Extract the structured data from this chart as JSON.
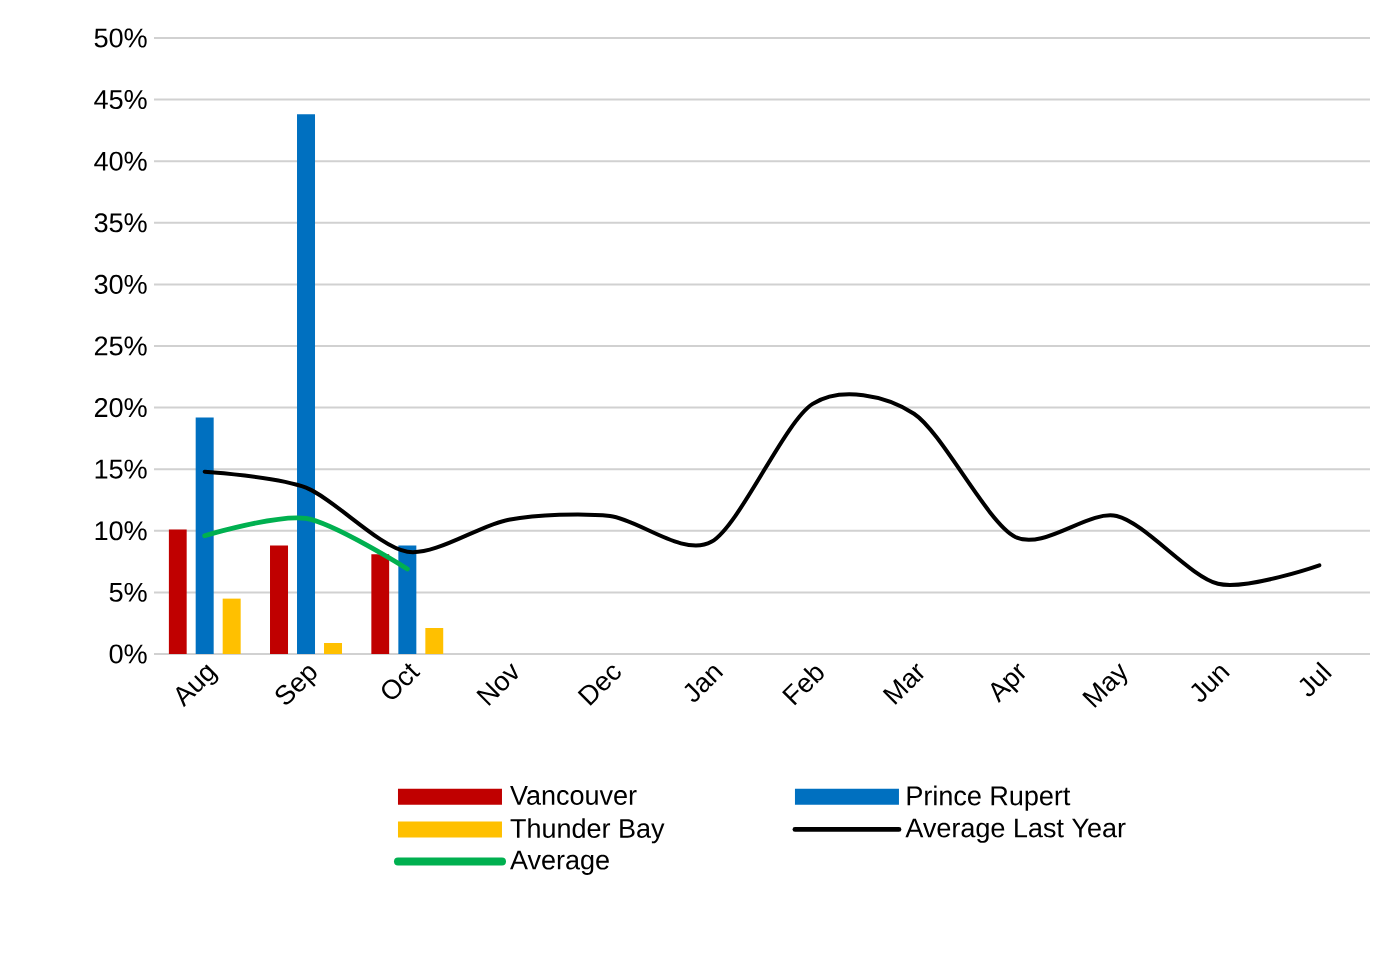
{
  "chart_data": {
    "type": "bar",
    "categories": [
      "Aug",
      "Sep",
      "Oct",
      "Nov",
      "Dec",
      "Jan",
      "Feb",
      "Mar",
      "Apr",
      "May",
      "Jun",
      "Jul"
    ],
    "series": [
      {
        "name": "Vancouver",
        "color": "#c00000",
        "values": [
          10.1,
          8.8,
          8.1,
          null,
          null,
          null,
          null,
          null,
          null,
          null,
          null,
          null
        ]
      },
      {
        "name": "Prince Rupert",
        "color": "#0070c0",
        "values": [
          19.2,
          43.8,
          8.8,
          null,
          null,
          null,
          null,
          null,
          null,
          null,
          null,
          null
        ]
      },
      {
        "name": "Thunder Bay",
        "color": "#ffc000",
        "values": [
          4.5,
          0.9,
          2.1,
          null,
          null,
          null,
          null,
          null,
          null,
          null,
          null,
          null
        ]
      },
      {
        "name": "Average Last Year",
        "type": "line",
        "color": "#000000",
        "values": [
          14.8,
          13.5,
          8.3,
          10.9,
          11.2,
          9.1,
          20.3,
          19.5,
          9.5,
          11.2,
          5.7,
          7.2
        ]
      },
      {
        "name": "Average",
        "type": "line",
        "color": "#00b050",
        "values": [
          9.6,
          11.0,
          6.9,
          null,
          null,
          null,
          null,
          null,
          null,
          null,
          null,
          null
        ]
      }
    ],
    "ylim": [
      0,
      50
    ],
    "yticks": [
      {
        "value": 0,
        "label": "0%"
      },
      {
        "value": 5,
        "label": "5%"
      },
      {
        "value": 10,
        "label": "10%"
      },
      {
        "value": 15,
        "label": "15%"
      },
      {
        "value": 20,
        "label": "20%"
      },
      {
        "value": 25,
        "label": "25%"
      },
      {
        "value": 30,
        "label": "30%"
      },
      {
        "value": 35,
        "label": "35%"
      },
      {
        "value": 40,
        "label": "40%"
      },
      {
        "value": 45,
        "label": "45%"
      },
      {
        "value": 50,
        "label": "50%"
      }
    ],
    "grid": "y",
    "legend": "bottom",
    "marker": "none"
  }
}
